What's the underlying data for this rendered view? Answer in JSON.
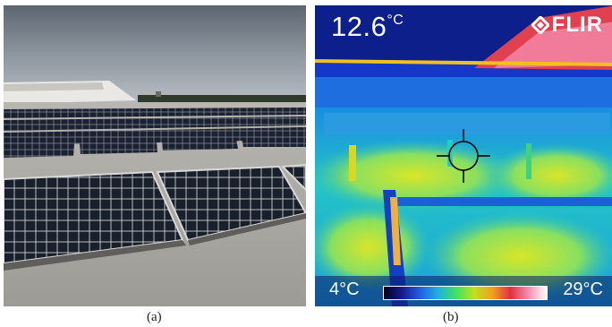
{
  "panel_a": {
    "caption": "(a)"
  },
  "panel_b": {
    "caption": "(b)",
    "temperature_readout": "12.6",
    "temperature_unit": "°C",
    "brand": "FLIR",
    "scale_min": "4°C",
    "scale_max": "29°C"
  },
  "icons": [
    "crosshair-icon",
    "flir-logo-icon"
  ]
}
